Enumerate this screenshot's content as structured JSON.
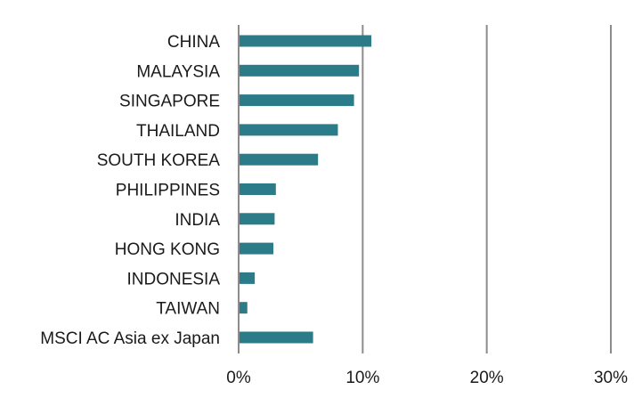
{
  "chart_data": {
    "type": "bar",
    "orientation": "horizontal",
    "title": "",
    "xlabel": "",
    "ylabel": "",
    "categories": [
      "CHINA",
      "MALAYSIA",
      "SINGAPORE",
      "THAILAND",
      "SOUTH KOREA",
      "PHILIPPINES",
      "INDIA",
      "HONG KONG",
      "INDONESIA",
      "TAIWAN",
      "MSCI AC Asia ex Japan"
    ],
    "values": [
      10.7,
      9.7,
      9.3,
      8.0,
      6.4,
      3.0,
      2.9,
      2.8,
      1.3,
      0.7,
      6.0
    ],
    "xlim": [
      0,
      30
    ],
    "xticks": [
      0,
      10,
      20,
      30
    ],
    "xtick_labels": [
      "0%",
      "10%",
      "20%",
      "30%"
    ],
    "grid": "vertical",
    "legend": "none",
    "bar_color": "#2b7b89",
    "grid_color": "#8c8c8c"
  }
}
